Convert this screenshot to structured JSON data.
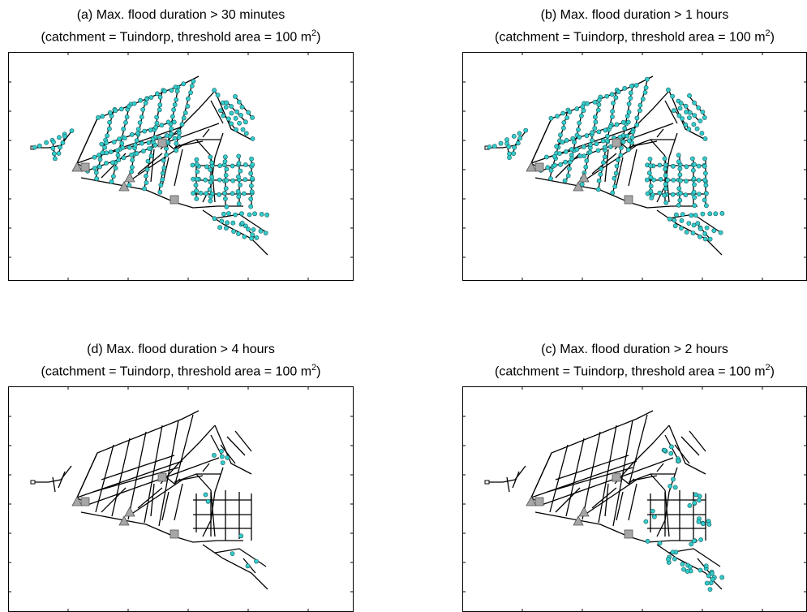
{
  "panels": {
    "a": {
      "title_line1": "(a) Max. flood duration > 30 minutes",
      "title_line2_pre": "(catchment = Tuindorp, threshold area = 100 m",
      "title_sup": "2",
      "title_line2_post": ")"
    },
    "b": {
      "title_line1": "(b) Max. flood duration > 1 hours",
      "title_line2_pre": "(catchment = Tuindorp, threshold area = 100 m",
      "title_sup": "2",
      "title_line2_post": ")"
    },
    "d": {
      "title_line1": "(d) Max. flood duration > 4 hours",
      "title_line2_pre": "(catchment = Tuindorp, threshold area = 100 m",
      "title_sup": "2",
      "title_line2_post": ")"
    },
    "c": {
      "title_line1": "(c) Max. flood duration > 2 hours",
      "title_line2_pre": "(catchment = Tuindorp, threshold area = 100 m",
      "title_sup": "2",
      "title_line2_post": ")"
    }
  },
  "colors": {
    "network": "#000000",
    "flooded_node": "#33cccc",
    "structure": "#a6a6a6",
    "frame": "#000000"
  }
}
